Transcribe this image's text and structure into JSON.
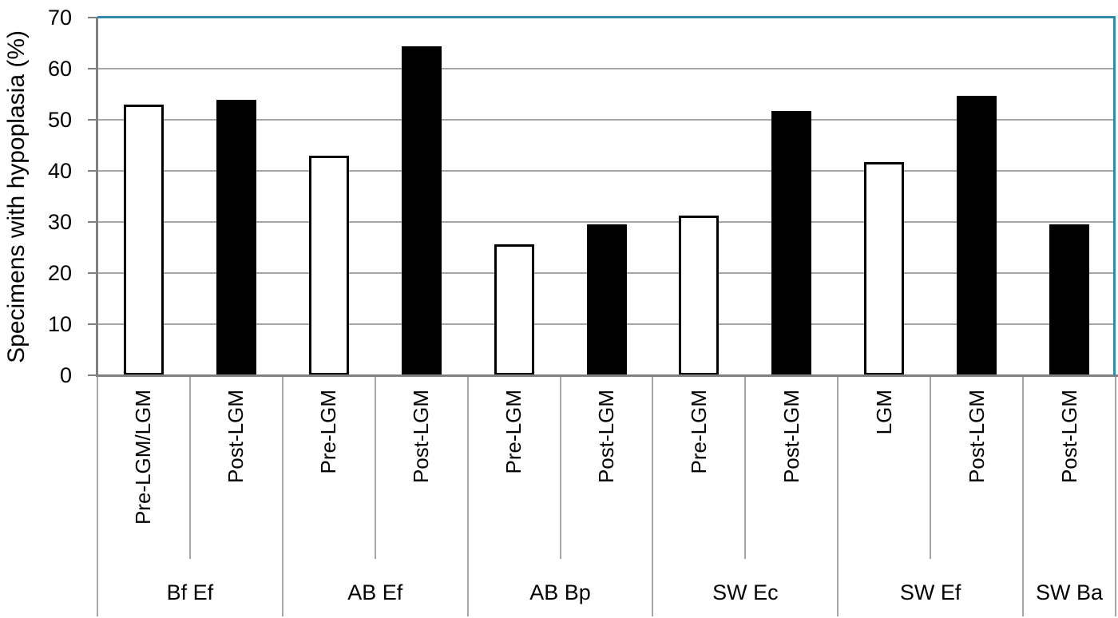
{
  "chart_data": {
    "type": "bar",
    "title": "",
    "ylabel": "Specimens with hypoplasia (%)",
    "xlabel": "",
    "ylim": [
      0,
      70
    ],
    "yticks": [
      0,
      10,
      20,
      30,
      40,
      50,
      60,
      70
    ],
    "grid": true,
    "legend_position": "none",
    "bar_styles": {
      "white": {
        "fill": "#FFFFFF",
        "outline": "#000000"
      },
      "black": {
        "fill": "#000000",
        "outline": "#000000"
      }
    },
    "groups": [
      {
        "label": "Bf Ef",
        "bars": [
          {
            "label": "Pre-LGM/LGM",
            "value": 52.9,
            "style": "white"
          },
          {
            "label": "Post-LGM",
            "value": 53.9,
            "style": "black"
          }
        ]
      },
      {
        "label": "AB Ef",
        "bars": [
          {
            "label": "Pre-LGM",
            "value": 43.0,
            "style": "white"
          },
          {
            "label": "Post-LGM",
            "value": 64.4,
            "style": "black"
          }
        ]
      },
      {
        "label": "AB Bp",
        "bars": [
          {
            "label": "Pre-LGM",
            "value": 25.7,
            "style": "white"
          },
          {
            "label": "Post-LGM",
            "value": 29.5,
            "style": "black"
          }
        ]
      },
      {
        "label": "SW Ec",
        "bars": [
          {
            "label": "Pre-LGM",
            "value": 31.3,
            "style": "white"
          },
          {
            "label": "Post-LGM",
            "value": 51.7,
            "style": "black"
          }
        ]
      },
      {
        "label": "SW Ef",
        "bars": [
          {
            "label": "LGM",
            "value": 41.7,
            "style": "white"
          },
          {
            "label": "Post-LGM",
            "value": 54.7,
            "style": "black"
          }
        ]
      },
      {
        "label": "SW Ba",
        "bars": [
          {
            "label": "Post-LGM",
            "value": 29.5,
            "style": "black"
          }
        ]
      }
    ],
    "colors": {
      "plot_border_accent": "#2E8CA8",
      "gridline": "#A6A6A6",
      "axis": "#808080",
      "separator": "#A6A6A6",
      "text": "#000000",
      "background": "#FFFFFF"
    }
  }
}
